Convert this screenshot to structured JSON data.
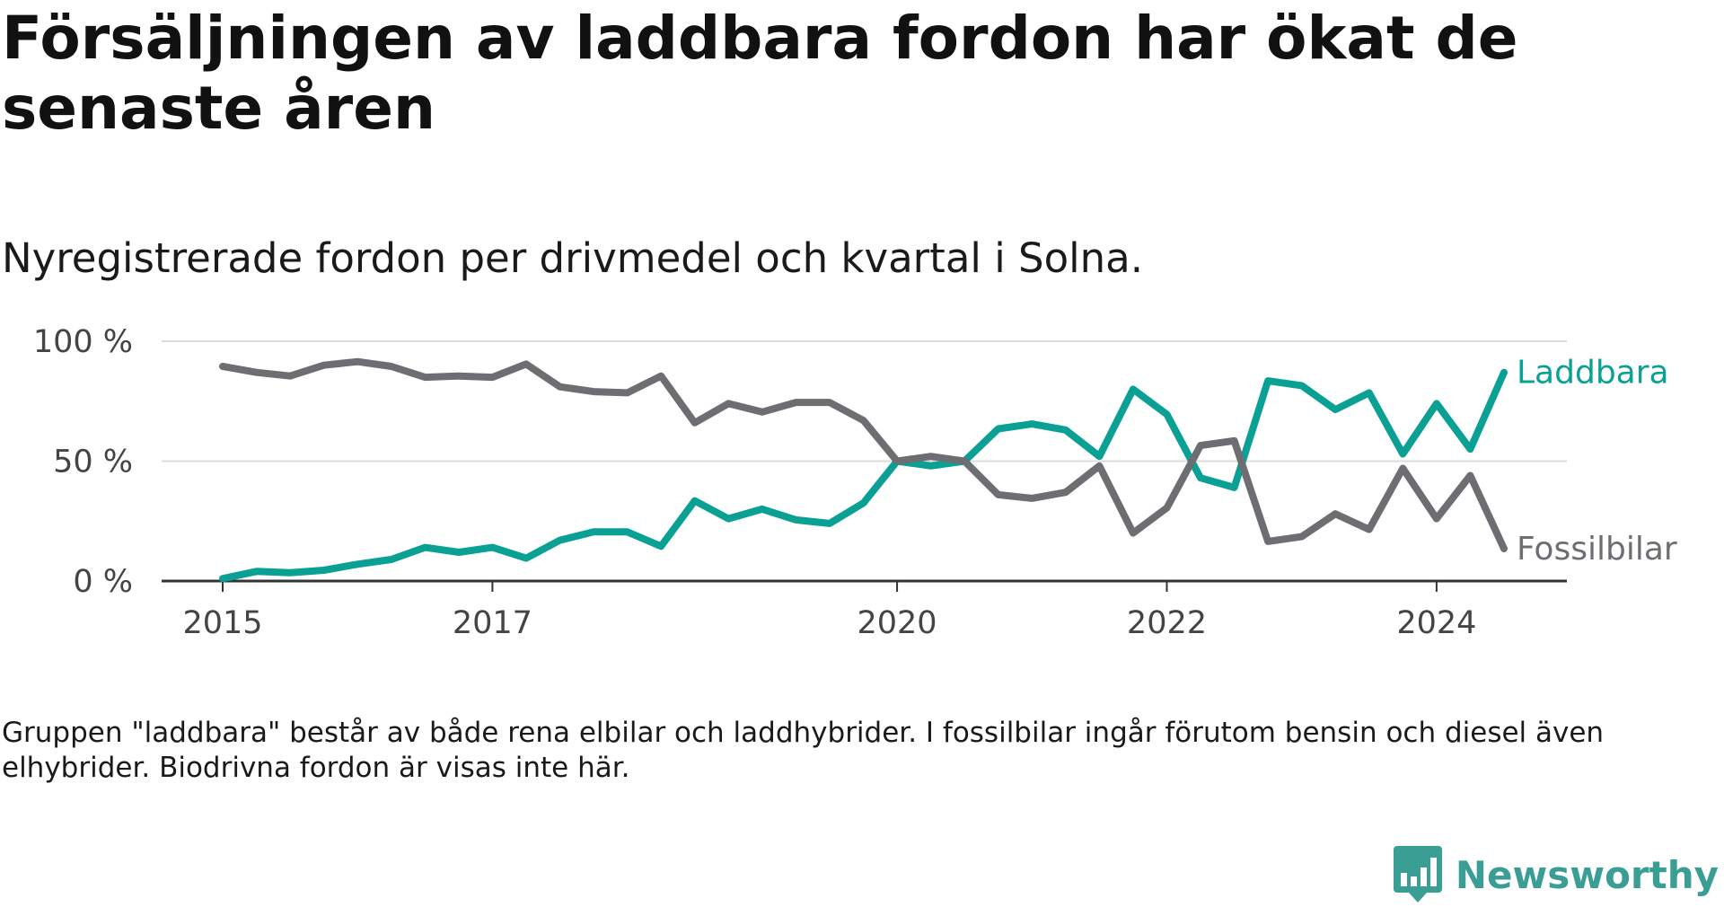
{
  "title": "Försäljningen av laddbara fordon har ökat de senaste åren",
  "subtitle": "Nyregistrerade fordon per drivmedel och kvartal i Solna.",
  "footnote": "Gruppen \"laddbara\" består av både rena elbilar och laddhybrider. I fossilbilar ingår förutom bensin och diesel även elhybrider. Biodrivna fordon är visas inte här.",
  "brand": {
    "name": "Newsworthy"
  },
  "colors": {
    "laddbara": "#0aa094",
    "fossil": "#6d6d72",
    "grid": "#dcdcdc",
    "axis": "#333333"
  },
  "chart_data": {
    "type": "line",
    "title": "Försäljningen av laddbara fordon har ökat de senaste åren",
    "xlabel": "",
    "ylabel": "",
    "ylim": [
      0,
      100
    ],
    "y_ticks": [
      {
        "value": 0,
        "label": "0 %"
      },
      {
        "value": 50,
        "label": "50 %"
      },
      {
        "value": 100,
        "label": "100 %"
      }
    ],
    "x_ticks": [
      {
        "value": 2015.0,
        "label": "2015"
      },
      {
        "value": 2017.0,
        "label": "2017"
      },
      {
        "value": 2020.0,
        "label": "2020"
      },
      {
        "value": 2022.0,
        "label": "2022"
      },
      {
        "value": 2024.0,
        "label": "2024"
      }
    ],
    "x": [
      2015.0,
      2015.25,
      2015.5,
      2015.75,
      2016.0,
      2016.25,
      2016.5,
      2016.75,
      2017.0,
      2017.25,
      2017.5,
      2017.75,
      2018.0,
      2018.25,
      2018.5,
      2018.75,
      2019.0,
      2019.25,
      2019.5,
      2019.75,
      2020.0,
      2020.25,
      2020.5,
      2020.75,
      2021.0,
      2021.25,
      2021.5,
      2021.75,
      2022.0,
      2022.25,
      2022.5,
      2022.75,
      2023.0,
      2023.25,
      2023.5,
      2023.75,
      2024.0,
      2024.25,
      2024.5
    ],
    "series": [
      {
        "name": "Laddbara",
        "label": "Laddbara",
        "values": [
          1,
          4,
          3.5,
          4.5,
          7,
          9,
          14,
          12,
          14,
          9.5,
          17,
          20.5,
          20.5,
          14.5,
          33.5,
          26,
          30,
          25.5,
          24,
          32.5,
          50,
          48,
          50,
          63.5,
          65.5,
          63,
          52,
          80,
          69.5,
          43,
          39,
          83.5,
          81.5,
          71.5,
          78.5,
          53,
          74,
          55,
          87
        ]
      },
      {
        "name": "Fossilbilar",
        "label": "Fossilbilar",
        "values": [
          89.5,
          87,
          85.5,
          90,
          91.5,
          89.5,
          85,
          85.5,
          85,
          90.5,
          81,
          79,
          78.5,
          85.5,
          66,
          74,
          70.5,
          74.5,
          74.5,
          67,
          50,
          52,
          50,
          36,
          34.5,
          37,
          48,
          20,
          30.5,
          56.5,
          58.5,
          16.5,
          18.5,
          28,
          21.5,
          47,
          26,
          44,
          13.5
        ]
      }
    ]
  }
}
